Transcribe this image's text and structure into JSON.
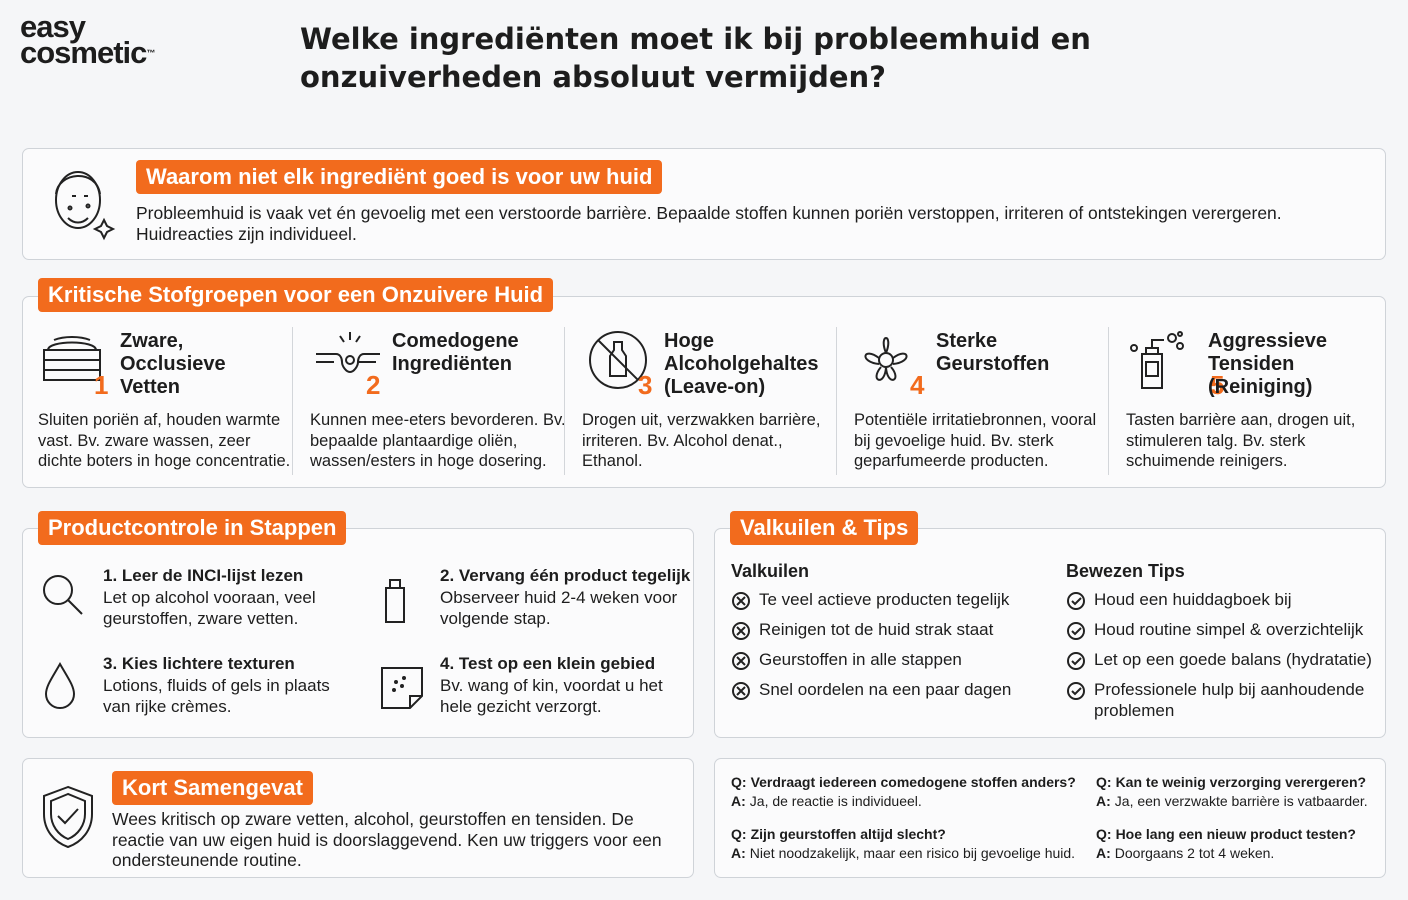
{
  "logo": {
    "line1": "easy",
    "line2": "cosmetic",
    "tm": "™"
  },
  "title": {
    "line1": "Welke ingrediënten moet ik bij probleemhuid en",
    "line2": "onzuiverheden absoluut vermijden?"
  },
  "intro": {
    "heading": "Waarom niet elk ingrediënt goed is voor uw huid",
    "text": "Probleemhuid is vaak vet én gevoelig met een verstoorde barrière. Bepaalde stoffen kunnen poriën verstoppen, irriteren of ontstekingen verergeren. Huidreacties zijn individueel."
  },
  "groups": {
    "heading": "Kritische Stofgroepen voor een Onzuivere Huid",
    "items": [
      {
        "number": "1",
        "title": "Zware, Occlusieve Vetten",
        "text": "Sluiten poriën af, houden warmte vast. Bv. zware wassen, zeer dichte boters in hoge concentratie."
      },
      {
        "number": "2",
        "title": "Comedogene Ingrediënten",
        "text": "Kunnen mee-eters bevorderen. Bv. bepaalde plantaardige oliën, wassen/esters in hoge dosering."
      },
      {
        "number": "3",
        "title": "Hoge Alcoholgehaltes (Leave-on)",
        "text": "Drogen uit, verzwakken barrière, irriteren. Bv. Alcohol denat., Ethanol."
      },
      {
        "number": "4",
        "title": "Sterke Geurstoffen",
        "text": "Potentiële irritatiebronnen, vooral bij gevoelige huid. Bv. sterk geparfumeerde producten."
      },
      {
        "number": "5",
        "title": "Aggressieve Tensiden (Reiniging)",
        "text": "Tasten barrière aan, drogen uit, stimuleren talg. Bv. sterk schuimende reinigers."
      }
    ]
  },
  "steps": {
    "heading": "Productcontrole in Stappen",
    "items": [
      {
        "title": "1. Leer de INCI-lijst lezen",
        "text": "Let op alcohol vooraan, veel geurstoffen, zware vetten."
      },
      {
        "title": "2. Vervang één product tegelijk",
        "text": "Observeer huid 2-4 weken voor volgende stap."
      },
      {
        "title": "3. Kies lichtere texturen",
        "text": "Lotions, fluids of gels in plaats van rijke crèmes."
      },
      {
        "title": "4. Test op een klein gebied",
        "text": "Bv. wang of kin, voordat u het hele gezicht verzorgt."
      }
    ]
  },
  "tips": {
    "heading": "Valkuilen & Tips",
    "pitfalls": {
      "heading": "Valkuilen",
      "items": [
        "Te veel actieve producten tegelijk",
        "Reinigen tot de huid strak staat",
        "Geurstoffen in alle stappen",
        "Snel oordelen na een paar dagen"
      ]
    },
    "proven": {
      "heading": "Bewezen Tips",
      "items": [
        "Houd een huiddagboek bij",
        "Houd routine simpel & overzichtelijk",
        "Let op een goede balans (hydratatie)",
        "Professionele hulp bij aanhoudende problemen"
      ]
    }
  },
  "summary": {
    "heading": "Kort Samengevat",
    "text": "Wees kritisch op zware vetten, alcohol, geurstoffen en tensiden. De reactie van uw eigen huid is doorslaggevend. Ken uw triggers voor een ondersteunende routine."
  },
  "faq": {
    "q_prefix": "Q:",
    "a_prefix": "A:",
    "items": [
      {
        "q": "Verdraagt iedereen comedogene stoffen anders?",
        "a": "Ja, de reactie is individueel."
      },
      {
        "q": "Kan te weinig verzorging verergeren?",
        "a": "Ja, een verzwakte barrière is vatbaarder."
      },
      {
        "q": "Zijn geurstoffen altijd slecht?",
        "a": "Niet noodzakelijk, maar een risico bij gevoelige huid."
      },
      {
        "q": "Hoe lang een nieuw product testen?",
        "a": "Doorgaans 2 tot 4 weken."
      }
    ]
  }
}
